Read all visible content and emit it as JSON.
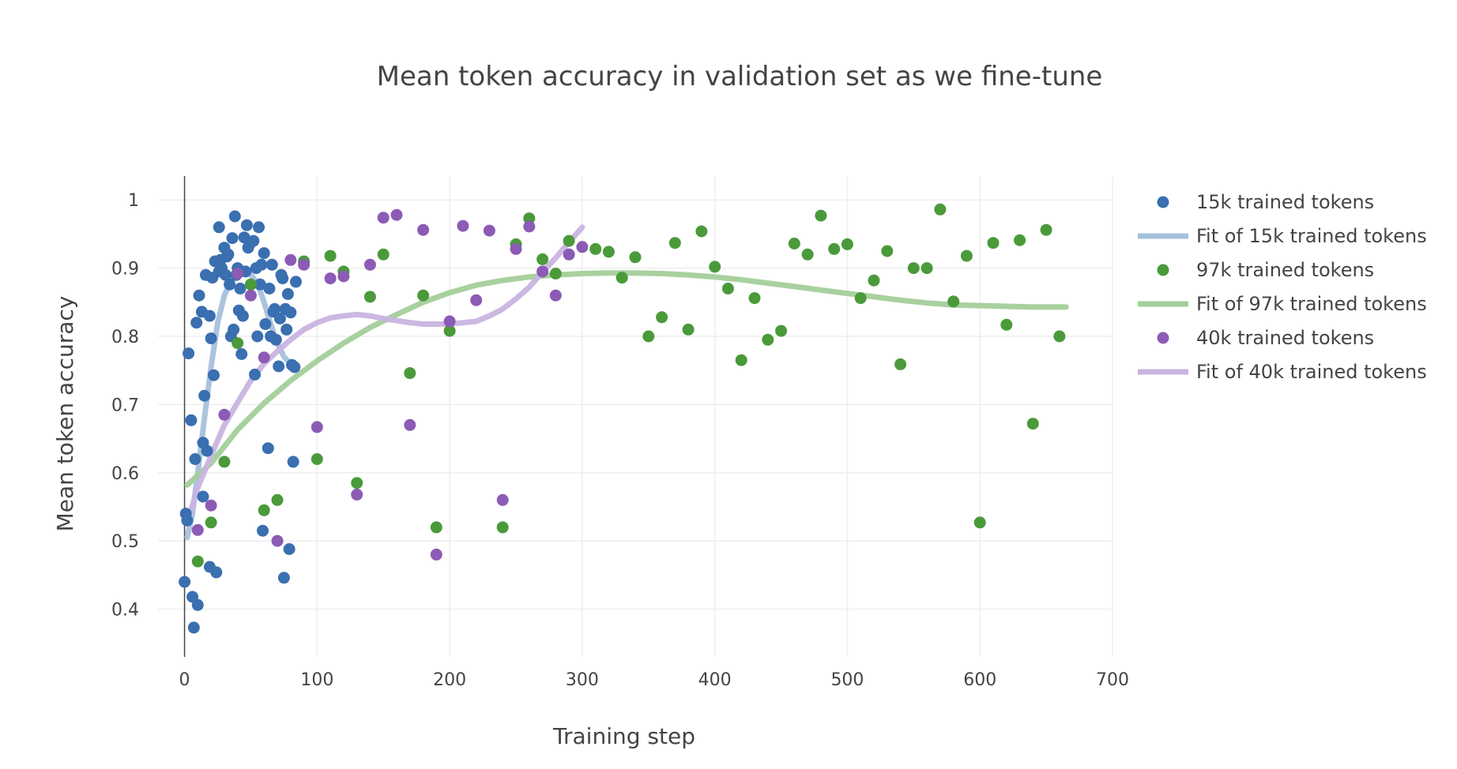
{
  "chart_data": {
    "type": "scatter",
    "title": "Mean token accuracy in validation set as we fine-tune",
    "xlabel": "Training step",
    "ylabel": "Mean token accuracy",
    "xlim": [
      -20,
      700
    ],
    "ylim": [
      0.33,
      1.035
    ],
    "xticks": [
      0,
      100,
      200,
      300,
      400,
      500,
      600,
      700
    ],
    "xtick_labels": [
      "0",
      "100",
      "200",
      "300",
      "400",
      "500",
      "600",
      "700"
    ],
    "yticks": [
      0.4,
      0.5,
      0.6,
      0.7,
      0.8,
      0.9,
      1
    ],
    "ytick_labels": [
      "0.4",
      "0.5",
      "0.6",
      "0.7",
      "0.8",
      "0.9",
      "1"
    ],
    "grid": true,
    "legend_position": "right",
    "series": [
      {
        "name": "15k trained tokens",
        "mode": "markers",
        "color": "#3a6fb0",
        "points": [
          [
            0,
            0.44
          ],
          [
            1,
            0.54
          ],
          [
            2,
            0.53
          ],
          [
            3,
            0.775
          ],
          [
            5,
            0.677
          ],
          [
            6,
            0.418
          ],
          [
            7,
            0.373
          ],
          [
            8,
            0.62
          ],
          [
            9,
            0.82
          ],
          [
            10,
            0.406
          ],
          [
            11,
            0.86
          ],
          [
            13,
            0.836
          ],
          [
            14,
            0.565
          ],
          [
            14,
            0.644
          ],
          [
            15,
            0.713
          ],
          [
            16,
            0.89
          ],
          [
            17,
            0.632
          ],
          [
            19,
            0.83
          ],
          [
            19,
            0.462
          ],
          [
            20,
            0.797
          ],
          [
            21,
            0.886
          ],
          [
            22,
            0.743
          ],
          [
            23,
            0.91
          ],
          [
            24,
            0.454
          ],
          [
            26,
            0.96
          ],
          [
            26,
            0.895
          ],
          [
            27,
            0.912
          ],
          [
            28,
            0.9
          ],
          [
            30,
            0.93
          ],
          [
            31,
            0.89
          ],
          [
            32,
            0.917
          ],
          [
            33,
            0.92
          ],
          [
            34,
            0.876
          ],
          [
            35,
            0.8
          ],
          [
            36,
            0.944
          ],
          [
            37,
            0.81
          ],
          [
            38,
            0.976
          ],
          [
            39,
            0.89
          ],
          [
            40,
            0.9
          ],
          [
            41,
            0.838
          ],
          [
            42,
            0.87
          ],
          [
            43,
            0.774
          ],
          [
            44,
            0.83
          ],
          [
            45,
            0.945
          ],
          [
            46,
            0.895
          ],
          [
            47,
            0.963
          ],
          [
            48,
            0.93
          ],
          [
            49,
            0.935
          ],
          [
            52,
            0.94
          ],
          [
            53,
            0.744
          ],
          [
            54,
            0.9
          ],
          [
            55,
            0.8
          ],
          [
            56,
            0.96
          ],
          [
            57,
            0.876
          ],
          [
            58,
            0.905
          ],
          [
            59,
            0.515
          ],
          [
            60,
            0.922
          ],
          [
            61,
            0.818
          ],
          [
            63,
            0.636
          ],
          [
            64,
            0.87
          ],
          [
            65,
            0.8
          ],
          [
            66,
            0.905
          ],
          [
            67,
            0.836
          ],
          [
            68,
            0.84
          ],
          [
            69,
            0.795
          ],
          [
            71,
            0.756
          ],
          [
            72,
            0.826
          ],
          [
            73,
            0.89
          ],
          [
            74,
            0.885
          ],
          [
            75,
            0.446
          ],
          [
            76,
            0.84
          ],
          [
            77,
            0.81
          ],
          [
            78,
            0.862
          ],
          [
            79,
            0.488
          ],
          [
            80,
            0.835
          ],
          [
            81,
            0.758
          ],
          [
            82,
            0.616
          ],
          [
            83,
            0.755
          ],
          [
            84,
            0.88
          ]
        ]
      },
      {
        "name": "Fit of 15k trained tokens",
        "mode": "line",
        "color": "#a6c1dc",
        "points": [
          [
            2,
            0.505
          ],
          [
            6,
            0.54
          ],
          [
            10,
            0.6
          ],
          [
            15,
            0.68
          ],
          [
            20,
            0.755
          ],
          [
            25,
            0.82
          ],
          [
            30,
            0.86
          ],
          [
            35,
            0.88
          ],
          [
            40,
            0.89
          ],
          [
            45,
            0.895
          ],
          [
            50,
            0.89
          ],
          [
            55,
            0.878
          ],
          [
            60,
            0.85
          ],
          [
            65,
            0.818
          ],
          [
            70,
            0.79
          ],
          [
            75,
            0.77
          ],
          [
            80,
            0.76
          ],
          [
            83,
            0.755
          ]
        ]
      },
      {
        "name": "97k trained tokens",
        "mode": "markers",
        "color": "#4a9a3a",
        "points": [
          [
            10,
            0.47
          ],
          [
            20,
            0.527
          ],
          [
            30,
            0.616
          ],
          [
            40,
            0.79
          ],
          [
            50,
            0.876
          ],
          [
            60,
            0.545
          ],
          [
            70,
            0.56
          ],
          [
            90,
            0.91
          ],
          [
            100,
            0.62
          ],
          [
            110,
            0.918
          ],
          [
            120,
            0.895
          ],
          [
            130,
            0.585
          ],
          [
            140,
            0.858
          ],
          [
            150,
            0.92
          ],
          [
            170,
            0.746
          ],
          [
            180,
            0.86
          ],
          [
            190,
            0.52
          ],
          [
            200,
            0.808
          ],
          [
            240,
            0.52
          ],
          [
            250,
            0.935
          ],
          [
            260,
            0.973
          ],
          [
            270,
            0.913
          ],
          [
            280,
            0.892
          ],
          [
            290,
            0.94
          ],
          [
            310,
            0.928
          ],
          [
            320,
            0.924
          ],
          [
            330,
            0.886
          ],
          [
            340,
            0.916
          ],
          [
            350,
            0.8
          ],
          [
            360,
            0.828
          ],
          [
            370,
            0.937
          ],
          [
            380,
            0.81
          ],
          [
            390,
            0.954
          ],
          [
            400,
            0.902
          ],
          [
            410,
            0.87
          ],
          [
            420,
            0.765
          ],
          [
            430,
            0.856
          ],
          [
            440,
            0.795
          ],
          [
            450,
            0.808
          ],
          [
            460,
            0.936
          ],
          [
            470,
            0.92
          ],
          [
            480,
            0.977
          ],
          [
            490,
            0.928
          ],
          [
            500,
            0.935
          ],
          [
            510,
            0.856
          ],
          [
            520,
            0.882
          ],
          [
            530,
            0.925
          ],
          [
            540,
            0.759
          ],
          [
            550,
            0.9
          ],
          [
            560,
            0.9
          ],
          [
            570,
            0.986
          ],
          [
            580,
            0.851
          ],
          [
            590,
            0.918
          ],
          [
            600,
            0.527
          ],
          [
            610,
            0.937
          ],
          [
            620,
            0.817
          ],
          [
            630,
            0.941
          ],
          [
            640,
            0.672
          ],
          [
            650,
            0.956
          ],
          [
            660,
            0.8
          ]
        ]
      },
      {
        "name": "Fit of 97k trained tokens",
        "mode": "line",
        "color": "#a3cf9a",
        "points": [
          [
            2,
            0.582
          ],
          [
            20,
            0.614
          ],
          [
            40,
            0.663
          ],
          [
            60,
            0.702
          ],
          [
            80,
            0.735
          ],
          [
            100,
            0.764
          ],
          [
            120,
            0.79
          ],
          [
            140,
            0.813
          ],
          [
            160,
            0.832
          ],
          [
            180,
            0.85
          ],
          [
            200,
            0.864
          ],
          [
            220,
            0.875
          ],
          [
            240,
            0.882
          ],
          [
            260,
            0.887
          ],
          [
            280,
            0.89
          ],
          [
            300,
            0.892
          ],
          [
            320,
            0.893
          ],
          [
            340,
            0.893
          ],
          [
            360,
            0.892
          ],
          [
            380,
            0.89
          ],
          [
            400,
            0.887
          ],
          [
            420,
            0.883
          ],
          [
            440,
            0.878
          ],
          [
            460,
            0.873
          ],
          [
            480,
            0.868
          ],
          [
            500,
            0.863
          ],
          [
            520,
            0.858
          ],
          [
            540,
            0.853
          ],
          [
            560,
            0.849
          ],
          [
            580,
            0.846
          ],
          [
            600,
            0.845
          ],
          [
            620,
            0.844
          ],
          [
            640,
            0.843
          ],
          [
            660,
            0.843
          ],
          [
            665,
            0.843
          ]
        ]
      },
      {
        "name": "40k trained tokens",
        "mode": "markers",
        "color": "#8c5bb5",
        "points": [
          [
            10,
            0.516
          ],
          [
            20,
            0.552
          ],
          [
            30,
            0.685
          ],
          [
            40,
            0.892
          ],
          [
            50,
            0.86
          ],
          [
            60,
            0.769
          ],
          [
            70,
            0.5
          ],
          [
            80,
            0.912
          ],
          [
            90,
            0.905
          ],
          [
            100,
            0.667
          ],
          [
            110,
            0.885
          ],
          [
            120,
            0.888
          ],
          [
            130,
            0.568
          ],
          [
            140,
            0.905
          ],
          [
            150,
            0.974
          ],
          [
            160,
            0.978
          ],
          [
            170,
            0.67
          ],
          [
            180,
            0.956
          ],
          [
            190,
            0.48
          ],
          [
            200,
            0.822
          ],
          [
            210,
            0.962
          ],
          [
            220,
            0.853
          ],
          [
            230,
            0.955
          ],
          [
            240,
            0.56
          ],
          [
            250,
            0.928
          ],
          [
            260,
            0.961
          ],
          [
            270,
            0.895
          ],
          [
            280,
            0.86
          ],
          [
            290,
            0.92
          ],
          [
            300,
            0.931
          ]
        ]
      },
      {
        "name": "Fit of 40k trained tokens",
        "mode": "line",
        "color": "#c9b4e0",
        "points": [
          [
            2,
            0.527
          ],
          [
            10,
            0.578
          ],
          [
            20,
            0.625
          ],
          [
            30,
            0.67
          ],
          [
            40,
            0.703
          ],
          [
            50,
            0.735
          ],
          [
            60,
            0.76
          ],
          [
            70,
            0.778
          ],
          [
            80,
            0.795
          ],
          [
            90,
            0.81
          ],
          [
            100,
            0.82
          ],
          [
            110,
            0.827
          ],
          [
            120,
            0.83
          ],
          [
            130,
            0.832
          ],
          [
            140,
            0.83
          ],
          [
            150,
            0.826
          ],
          [
            160,
            0.823
          ],
          [
            170,
            0.82
          ],
          [
            180,
            0.818
          ],
          [
            190,
            0.818
          ],
          [
            200,
            0.818
          ],
          [
            210,
            0.82
          ],
          [
            220,
            0.822
          ],
          [
            230,
            0.83
          ],
          [
            240,
            0.84
          ],
          [
            250,
            0.855
          ],
          [
            260,
            0.872
          ],
          [
            270,
            0.894
          ],
          [
            280,
            0.915
          ],
          [
            290,
            0.938
          ],
          [
            300,
            0.96
          ]
        ]
      }
    ]
  }
}
